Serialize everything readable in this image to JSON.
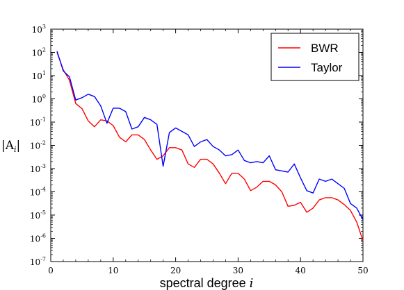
{
  "chart_data": {
    "type": "line",
    "xlabel": "spectral degree i",
    "xlabel_text": "spectral degree ",
    "xlabel_var": "i",
    "ylabel": "|A_i|",
    "ylabel_parts": [
      "|A",
      "i",
      "|"
    ],
    "xlim": [
      0,
      50
    ],
    "ylim_log10": [
      -7,
      3
    ],
    "y_scale": "log",
    "x_ticks": [
      0,
      10,
      20,
      30,
      40,
      50
    ],
    "y_tick_exponents": [
      -7,
      -6,
      -5,
      -4,
      -3,
      -2,
      -1,
      0,
      1,
      2,
      3
    ],
    "y_tick_base": "10",
    "legend_position": "top-right",
    "grid": false,
    "x": [
      1,
      2,
      3,
      4,
      5,
      6,
      7,
      8,
      9,
      10,
      11,
      12,
      13,
      14,
      15,
      16,
      17,
      18,
      19,
      20,
      21,
      22,
      23,
      24,
      25,
      26,
      27,
      28,
      29,
      30,
      31,
      32,
      33,
      34,
      35,
      36,
      37,
      38,
      39,
      40,
      41,
      42,
      43,
      44,
      45,
      46,
      47,
      48,
      49,
      50
    ],
    "series": [
      {
        "name": "BWR",
        "color": "#ff0000",
        "log10_values": [
          2.0,
          1.25,
          0.8,
          -0.2,
          -0.42,
          -0.95,
          -1.2,
          -0.9,
          -0.95,
          -1.15,
          -1.65,
          -1.85,
          -1.55,
          -1.55,
          -1.75,
          -2.2,
          -2.6,
          -2.45,
          -2.1,
          -2.1,
          -2.2,
          -2.8,
          -2.95,
          -2.6,
          -2.6,
          -2.8,
          -3.2,
          -3.65,
          -3.2,
          -3.2,
          -3.45,
          -3.95,
          -3.8,
          -3.55,
          -3.55,
          -3.7,
          -4.0,
          -4.62,
          -4.58,
          -4.45,
          -4.88,
          -4.7,
          -4.35,
          -4.25,
          -4.25,
          -4.35,
          -4.55,
          -4.8,
          -5.3,
          -6.1
        ]
      },
      {
        "name": "Taylor",
        "color": "#0000ff",
        "log10_values": [
          2.05,
          1.2,
          0.95,
          -0.05,
          0.05,
          0.2,
          0.1,
          -0.3,
          -1.05,
          -0.4,
          -0.4,
          -0.55,
          -1.3,
          -1.2,
          -0.8,
          -0.9,
          -1.1,
          -2.9,
          -1.45,
          -1.25,
          -1.4,
          -1.55,
          -2.05,
          -1.85,
          -1.75,
          -2.05,
          -2.2,
          -2.45,
          -2.4,
          -2.2,
          -2.65,
          -2.75,
          -2.7,
          -2.75,
          -2.45,
          -3.05,
          -3.1,
          -3.15,
          -2.8,
          -3.4,
          -3.95,
          -4.05,
          -3.45,
          -3.55,
          -3.45,
          -3.65,
          -3.85,
          -4.5,
          -4.7,
          -5.2
        ]
      }
    ]
  }
}
